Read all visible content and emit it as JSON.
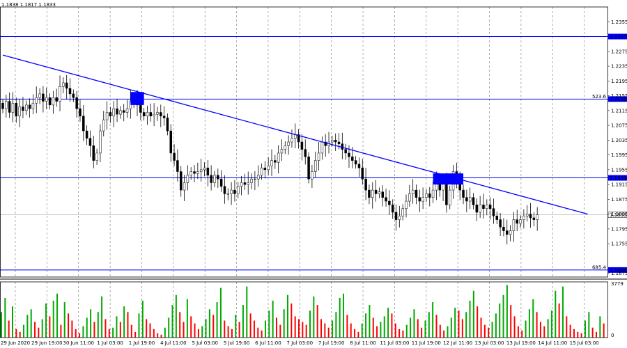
{
  "header": {
    "ohlc": "1.1838 1.1817 1.1833"
  },
  "chart_data": {
    "type": "candlestick",
    "symbol": "",
    "price_axis": {
      "ylim": [
        1.1665,
        1.2395
      ],
      "ticks": [
        "1.2355",
        "1.2275",
        "1.2235",
        "1.2195",
        "1.2155",
        "1.2115",
        "1.2075",
        "1.2035",
        "1.1995",
        "1.1955",
        "1.1915",
        "1.1875",
        "1.1835",
        "1.1795",
        "1.1755",
        "1.1675"
      ]
    },
    "time_axis": {
      "ticks": [
        "29 Jun 2020",
        "29 Jun 19:00",
        "30 Jun 11:00",
        "1 Jul 03:00",
        "1 Jul 19:00",
        "4 Jul 11:00",
        "5 Jul 03:00",
        "5 Jul 19:00",
        "6 Jul 11:00",
        "7 Jul 03:00",
        "7 Jul 19:00",
        "8 Jul 11:00",
        "11 Jul 03:00",
        "11 Jul 19:00",
        "12 Jul 11:00",
        "13 Jul 03:00",
        "13 Jul 19:00",
        "14 Jul 11:00",
        "15 Jul 03:00"
      ]
    },
    "levels": [
      {
        "price": 1.2315,
        "label": "1.2315",
        "tag": ""
      },
      {
        "price": 1.2146,
        "label": "1.2146",
        "tag": "523.6"
      },
      {
        "price": 1.1933,
        "label": "1.1933",
        "tag": ""
      },
      {
        "price": 1.1684,
        "label": "1.1684",
        "tag": "685.4"
      }
    ],
    "current_price": {
      "price": 1.1833,
      "label": "1.1833"
    },
    "trendline": {
      "start": [
        0,
        1.2265
      ],
      "end": [
        174,
        1.1835
      ]
    },
    "markers": [
      {
        "x": [
          38,
          42
        ],
        "y": [
          1.213,
          1.2165
        ]
      },
      {
        "x": [
          128,
          137
        ],
        "y": [
          1.1915,
          1.1945
        ]
      }
    ],
    "candles_close": [
      1.212,
      1.214,
      1.211,
      1.2135,
      1.21,
      1.2125,
      1.2115,
      1.213,
      1.212,
      1.2135,
      1.215,
      1.216,
      1.214,
      1.215,
      1.213,
      1.215,
      1.214,
      1.218,
      1.219,
      1.2175,
      1.216,
      1.215,
      1.212,
      1.21,
      1.206,
      1.204,
      1.202,
      1.198,
      1.2,
      1.206,
      1.209,
      1.211,
      1.21,
      1.212,
      1.2105,
      1.2115,
      1.211,
      1.212,
      1.214,
      1.215,
      1.213,
      1.211,
      1.21,
      1.211,
      1.21,
      1.2105,
      1.211,
      1.21,
      1.2095,
      1.206,
      1.2,
      1.198,
      1.195,
      1.19,
      1.192,
      1.194,
      1.195,
      1.1945,
      1.195,
      1.1955,
      1.196,
      1.194,
      1.192,
      1.194,
      1.193,
      1.191,
      1.189,
      1.189,
      1.19,
      1.189,
      1.191,
      1.192,
      1.1915,
      1.192,
      1.193,
      1.193,
      1.194,
      1.196,
      1.1955,
      1.1965,
      1.198,
      1.1975,
      1.2,
      1.201,
      1.202,
      1.203,
      1.204,
      1.205,
      1.203,
      1.201,
      1.199,
      1.193,
      1.195,
      1.198,
      1.2,
      1.203,
      1.202,
      1.203,
      1.2035,
      1.203,
      1.2025,
      1.201,
      1.2,
      1.199,
      1.198,
      1.197,
      1.196,
      1.193,
      1.19,
      1.188,
      1.19,
      1.189,
      1.1895,
      1.188,
      1.187,
      1.186,
      1.184,
      1.182,
      1.183,
      1.185,
      1.187,
      1.189,
      1.19,
      1.188,
      1.187,
      1.188,
      1.189,
      1.188,
      1.19,
      1.192,
      1.19,
      1.192,
      1.186,
      1.19,
      1.195,
      1.192,
      1.19,
      1.188,
      1.187,
      1.188,
      1.186,
      1.184,
      1.186,
      1.185,
      1.186,
      1.185,
      1.183,
      1.182,
      1.18,
      1.179,
      1.178,
      1.179,
      1.182,
      1.181,
      1.182,
      1.183,
      1.1835,
      1.1825,
      1.182,
      1.1833
    ],
    "volume": {
      "max_label": "3779",
      "zero_label": "0",
      "max": 3779,
      "values": [
        1800,
        2800,
        1200,
        2200,
        600,
        400,
        900,
        1600,
        2000,
        1100,
        700,
        1300,
        2400,
        1500,
        2600,
        3100,
        900,
        2500,
        1700,
        1200,
        600,
        300,
        800,
        1400,
        2000,
        1100,
        1800,
        2900,
        1300,
        600,
        700,
        1500,
        1100,
        2200,
        1800,
        900,
        400,
        1700,
        2600,
        1300,
        1000,
        600,
        300,
        200,
        700,
        1400,
        2300,
        3000,
        1800,
        1100,
        2700,
        1500,
        1000,
        600,
        800,
        1300,
        2000,
        1600,
        2500,
        3500,
        1200,
        800,
        600,
        1600,
        1100,
        2300,
        3600,
        1700,
        1200,
        700,
        500,
        1200,
        1900,
        2600,
        1400,
        900,
        2000,
        3000,
        2400,
        1500,
        1300,
        1100,
        900,
        1900,
        2900,
        2300,
        1300,
        1000,
        700,
        1200,
        1800,
        2800,
        3100,
        1600,
        1000,
        600,
        400,
        1000,
        1700,
        2300,
        1400,
        800,
        1100,
        1500,
        2100,
        1700,
        1000,
        600,
        500,
        900,
        1400,
        2000,
        1300,
        700,
        1200,
        1800,
        2500,
        1600,
        900,
        500,
        800,
        1400,
        2100,
        1900,
        1300,
        1800,
        2600,
        3300,
        2200,
        1400,
        900,
        700,
        1100,
        1700,
        2400,
        3000,
        3700,
        2300,
        1500,
        800,
        500,
        1200,
        2000,
        2700,
        1800,
        1100,
        800,
        1300,
        1900,
        3300,
        2400,
        3600,
        1500,
        900,
        600,
        400,
        300,
        1200,
        1800,
        700,
        400,
        1500,
        1000
      ]
    }
  }
}
